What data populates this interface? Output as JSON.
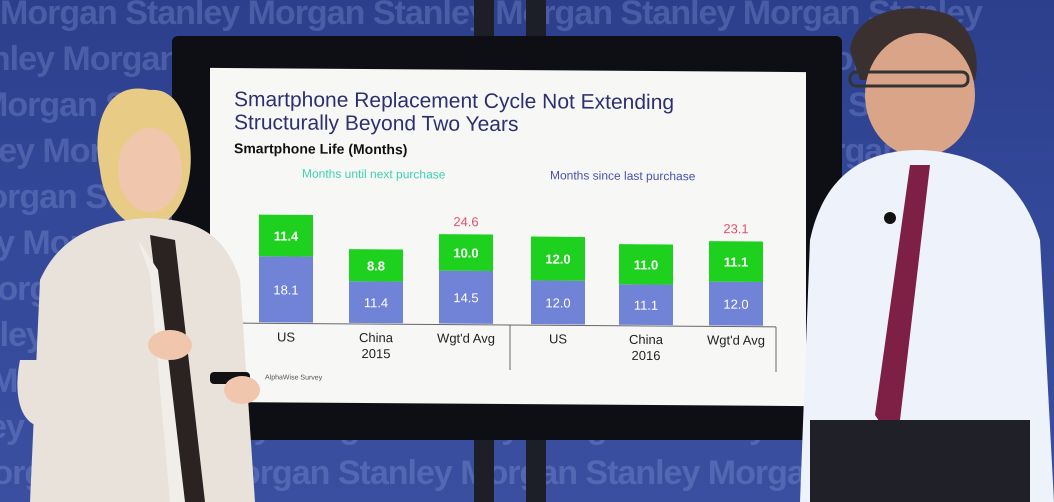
{
  "watermark": {
    "line_texts": [
      "Morgan Stanley Morgan Stanley Morgan Stanley Morgan Stanley",
      "Stanley Morgan Stanley Morgan Stanley Morgan Stanley Morgan"
    ]
  },
  "slide": {
    "title_line1": "Smartphone Replacement Cycle Not Extending",
    "title_line2": "Structurally Beyond Two Years",
    "subtitle": "Smartphone Life (Months)",
    "header_left": "Months until next purchase",
    "header_right": "Months since last purchase",
    "source": "AlphaWise Survey"
  },
  "colors": {
    "bottom_segment": "#7183d6",
    "top_segment": "#1fd11f",
    "title": "#2d2f6e",
    "header_left": "#3fd0b0",
    "header_right": "#4a4fb0",
    "total": "#e0506a"
  },
  "chart_data": {
    "type": "bar",
    "stacked": true,
    "categories": [
      "US",
      "China\n2015",
      "Wgt'd Avg",
      "US",
      "China\n2016",
      "Wgt'd Avg"
    ],
    "series": [
      {
        "name": "Months since last purchase",
        "values": [
          18.1,
          11.4,
          14.5,
          12.0,
          11.1,
          12.0
        ]
      },
      {
        "name": "Months until next purchase",
        "values": [
          11.4,
          8.8,
          10.0,
          12.0,
          11.0,
          11.1
        ]
      }
    ],
    "totals": [
      null,
      null,
      24.6,
      null,
      null,
      23.1
    ],
    "title": "Smartphone Life (Months)",
    "xlabel": "",
    "ylabel": "",
    "grid": false
  }
}
